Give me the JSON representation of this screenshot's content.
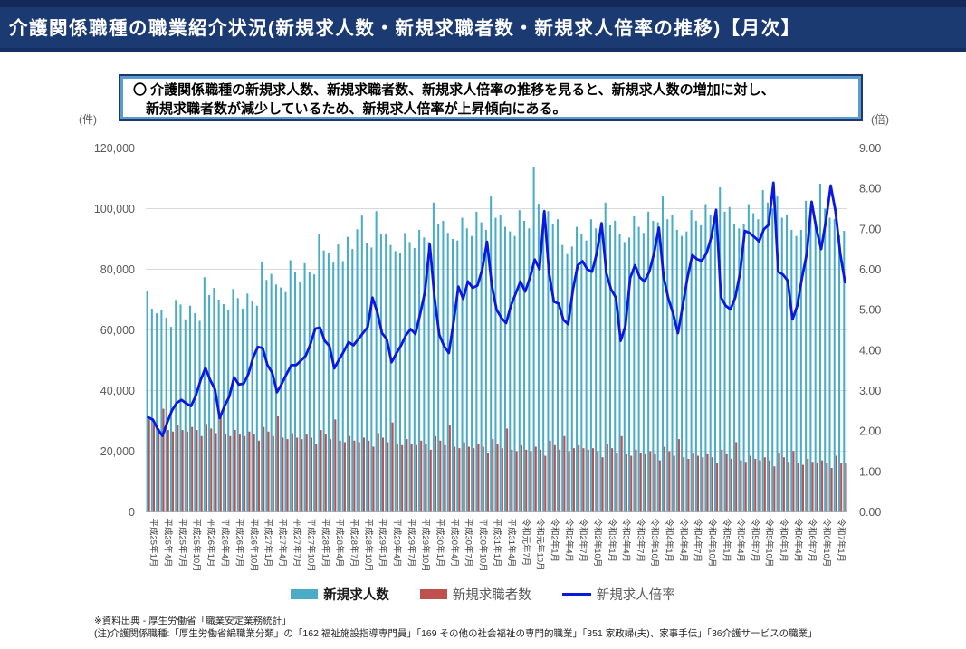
{
  "banner": {
    "title": "介護関係職種の職業紹介状況(新規求人数・新規求職者数・新規求人倍率の推移)【月次】"
  },
  "note": {
    "line1": "〇 介護関係職種の新規求人数、新規求職者数、新規求人倍率の推移を見ると、新規求人数の増加に対し、",
    "line2": "新規求職者数が減少しているため、新規求人倍率が上昇傾向にある。"
  },
  "legend": [
    {
      "label": "新規求人数",
      "color": "#4BACC6",
      "type": "bar",
      "emphasis": true
    },
    {
      "label": "新規求職者数",
      "color": "#C0504D",
      "type": "bar",
      "emphasis": false
    },
    {
      "label": "新規求人倍率",
      "color": "#0A18E0",
      "type": "line",
      "emphasis": false
    }
  ],
  "footnotes": {
    "line1": "※資料出典 - 厚生労働省「職業安定業務統計」",
    "line2": "(注)介護関係職種:「厚生労働省編職業分類」の「162 福祉施設指導専門員」「169 その他の社会福祉の専門的職業」「351 家政婦(夫)、家事手伝」「36介護サービスの職業」"
  },
  "chart_data": {
    "type": "bar+line combo, monthly",
    "title": "",
    "months_total": 147,
    "period": "平成25年1月〜令和7年3月",
    "left_axis": {
      "unit": "(件)",
      "min": 0,
      "max": 120000,
      "step": 20000,
      "tick_labels": [
        "0",
        "20,000",
        "40,000",
        "60,000",
        "80,000",
        "100,000",
        "120,000"
      ]
    },
    "right_axis": {
      "unit": "(倍)",
      "min": 0,
      "max": 9,
      "step": 1,
      "tick_labels": [
        "0.00",
        "1.00",
        "2.00",
        "3.00",
        "4.00",
        "5.00",
        "6.00",
        "7.00",
        "8.00",
        "9.00"
      ]
    },
    "x_tick_every_n_months": 3,
    "x_tick_labels": [
      "平成25年1月",
      "平成25年4月",
      "平成25年7月",
      "平成25年10月",
      "平成26年1月",
      "平成26年4月",
      "平成26年7月",
      "平成26年10月",
      "平成27年1月",
      "平成27年4月",
      "平成27年7月",
      "平成27年10月",
      "平成28年1月",
      "平成28年4月",
      "平成28年7月",
      "平成28年10月",
      "平成29年1月",
      "平成29年4月",
      "平成29年7月",
      "平成29年10月",
      "平成30年1月",
      "平成30年4月",
      "平成30年7月",
      "平成30年10月",
      "平成31年1月",
      "平成31年4月",
      "令和元年7月",
      "令和元年10月",
      "令和2年1月",
      "令和2年4月",
      "令和2年7月",
      "令和2年10月",
      "令和3年1月",
      "令和3年4月",
      "令和3年7月",
      "令和3年10月",
      "令和4年1月",
      "令和4年4月",
      "令和4年7月",
      "令和4年10月",
      "令和5年1月",
      "令和5年4月",
      "令和5年7月",
      "令和5年10月",
      "令和6年1月",
      "令和6年4月",
      "令和6年7月",
      "令和6年10月",
      "令和7年1月"
    ],
    "grid": {
      "horizontal": true,
      "color": "#D9D9D9",
      "baseline_color": "#BFBFBF"
    },
    "series": [
      {
        "name": "新規求人数",
        "type": "bar",
        "axis": "left",
        "color": "#4BACC6",
        "values": [
          72800,
          67000,
          65500,
          66500,
          64000,
          61000,
          69900,
          68400,
          63500,
          68000,
          65500,
          63000,
          77400,
          71500,
          73900,
          70000,
          68500,
          66500,
          73500,
          70500,
          67000,
          72000,
          69500,
          68000,
          82400,
          76500,
          78500,
          75000,
          74000,
          72500,
          83000,
          79000,
          76000,
          82000,
          79300,
          78300,
          91700,
          86200,
          85200,
          82200,
          88200,
          82700,
          90700,
          86700,
          93200,
          97700,
          88700,
          87200,
          99200,
          91800,
          91800,
          88000,
          86000,
          85500,
          92000,
          89000,
          87000,
          93000,
          90500,
          89000,
          102000,
          95000,
          96000,
          92000,
          90000,
          89500,
          97000,
          93500,
          91000,
          99000,
          95500,
          93000,
          104000,
          97000,
          98000,
          94000,
          92500,
          91000,
          99500,
          96000,
          93500,
          113800,
          101600,
          98700,
          99200,
          95000,
          96500,
          88000,
          85000,
          87500,
          94000,
          91500,
          89500,
          96500,
          93500,
          93000,
          102000,
          94500,
          96000,
          91500,
          89000,
          90500,
          97500,
          94000,
          92000,
          99000,
          96000,
          95500,
          104000,
          96500,
          98000,
          93000,
          91000,
          92500,
          99500,
          96000,
          94500,
          101500,
          98000,
          97000,
          107000,
          99000,
          100500,
          95000,
          93500,
          95000,
          101500,
          98500,
          96500,
          106100,
          102000,
          100000,
          104000,
          97000,
          98000,
          93000,
          91000,
          93000,
          102600,
          98000,
          96000,
          108200,
          100000,
          97000,
          96600,
          91200,
          92700
        ]
      },
      {
        "name": "新規求職者数",
        "type": "bar",
        "axis": "left",
        "color": "#C0504D",
        "values": [
          30500,
          29000,
          27500,
          34000,
          27000,
          26500,
          28500,
          27000,
          26500,
          28000,
          27000,
          25000,
          29000,
          27500,
          26000,
          32500,
          25500,
          25000,
          27000,
          25500,
          25000,
          26500,
          25500,
          23500,
          28000,
          26500,
          25000,
          31500,
          24500,
          24000,
          26000,
          24500,
          24000,
          25500,
          24500,
          22500,
          27000,
          25500,
          24000,
          30500,
          23500,
          23000,
          25000,
          23500,
          23000,
          24500,
          23500,
          21500,
          26000,
          24500,
          23000,
          29500,
          22500,
          22000,
          24000,
          22500,
          22000,
          23500,
          22500,
          20500,
          25000,
          23500,
          22000,
          28500,
          21500,
          21000,
          23000,
          21500,
          21000,
          22500,
          21500,
          19500,
          24000,
          22500,
          21000,
          27500,
          20500,
          20000,
          22000,
          20500,
          20000,
          21500,
          20500,
          18500,
          23500,
          22000,
          20500,
          25000,
          20000,
          21000,
          22000,
          21000,
          20500,
          21000,
          20000,
          18000,
          22500,
          21000,
          19500,
          25000,
          19000,
          18500,
          20500,
          19500,
          19000,
          20000,
          19000,
          17000,
          21500,
          20000,
          18500,
          24000,
          18000,
          17500,
          19500,
          18500,
          18000,
          19000,
          18000,
          16000,
          20500,
          19000,
          17500,
          23000,
          17000,
          16500,
          18500,
          17500,
          17000,
          18000,
          17000,
          15000,
          19500,
          18000,
          16500,
          20100,
          16000,
          15500,
          17500,
          16500,
          16000,
          17000,
          16000,
          14500,
          18500,
          16000,
          16000
        ]
      },
      {
        "name": "新規求人倍率",
        "type": "line",
        "axis": "right",
        "color": "#0A18E0",
        "values": [
          2.34,
          2.28,
          2.05,
          1.88,
          2.21,
          2.51,
          2.7,
          2.77,
          2.68,
          2.62,
          2.88,
          3.26,
          3.56,
          3.26,
          3.03,
          2.32,
          2.62,
          2.85,
          3.33,
          3.15,
          3.17,
          3.41,
          3.82,
          4.08,
          4.05,
          3.63,
          3.44,
          2.96,
          3.17,
          3.41,
          3.63,
          3.63,
          3.74,
          3.86,
          4.15,
          4.53,
          4.56,
          4.23,
          4.1,
          3.55,
          3.77,
          3.97,
          4.2,
          4.12,
          4.27,
          4.42,
          4.57,
          5.3,
          4.94,
          4.42,
          4.27,
          3.7,
          3.92,
          4.12,
          4.37,
          4.52,
          4.4,
          4.9,
          5.45,
          6.61,
          5.3,
          4.38,
          4.1,
          3.93,
          4.7,
          5.57,
          5.27,
          5.7,
          5.54,
          5.6,
          6.0,
          6.68,
          5.6,
          5.0,
          4.8,
          4.67,
          5.1,
          5.4,
          5.7,
          5.45,
          5.8,
          6.24,
          6.0,
          7.44,
          5.9,
          5.2,
          5.15,
          4.75,
          4.64,
          5.5,
          6.1,
          6.2,
          6.0,
          5.94,
          6.4,
          7.14,
          5.9,
          5.5,
          5.3,
          4.23,
          4.6,
          5.79,
          6.1,
          5.8,
          5.7,
          5.94,
          6.4,
          7.03,
          5.8,
          5.27,
          4.9,
          4.42,
          5.1,
          5.8,
          6.35,
          6.25,
          6.21,
          6.4,
          6.8,
          7.47,
          5.31,
          5.1,
          5.01,
          5.3,
          5.9,
          6.95,
          6.9,
          6.8,
          6.69,
          6.99,
          7.1,
          8.14,
          5.94,
          5.87,
          5.72,
          4.76,
          5.1,
          5.8,
          6.39,
          7.67,
          7.0,
          6.5,
          7.2,
          8.07,
          7.44,
          6.39,
          5.68
        ]
      }
    ]
  }
}
